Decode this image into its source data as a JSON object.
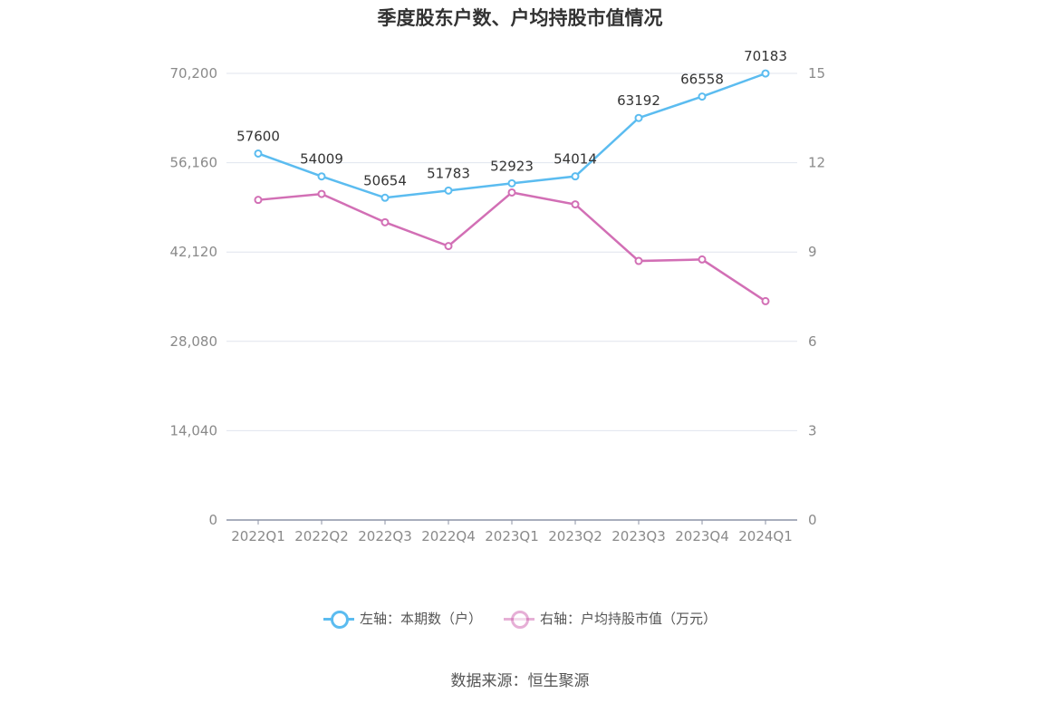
{
  "title": "季度股东户数、户均持股市值情况",
  "source": "数据来源：恒生聚源",
  "legend": [
    {
      "label": "左轴：本期数（户）",
      "color": "#5bbcf0"
    },
    {
      "label": "右轴：户均持股市值（万元）",
      "color": "#d26fb5"
    }
  ],
  "chart_data": {
    "type": "line",
    "categories": [
      "2022Q1",
      "2022Q2",
      "2022Q3",
      "2022Q4",
      "2023Q1",
      "2023Q2",
      "2023Q3",
      "2023Q4",
      "2024Q1"
    ],
    "y_left": {
      "ticks": [
        "0",
        "14,040",
        "28,080",
        "42,120",
        "56,160",
        "70,200"
      ],
      "ylim": [
        0,
        70200
      ]
    },
    "y_right": {
      "ticks": [
        "0",
        "3",
        "6",
        "9",
        "12",
        "15"
      ],
      "ylim": [
        0,
        15
      ]
    },
    "series": [
      {
        "name": "左轴：本期数（户）",
        "axis": "left",
        "color": "#5bbcf0",
        "values": [
          57600,
          54009,
          50654,
          51783,
          52923,
          54014,
          63192,
          66558,
          70183
        ],
        "labels": [
          "57600",
          "54009",
          "50654",
          "51783",
          "52923",
          "54014",
          "63192",
          "66558",
          "70183"
        ]
      },
      {
        "name": "右轴：户均持股市值（万元）",
        "axis": "right",
        "color": "#d26fb5",
        "values": [
          10.75,
          10.95,
          10.0,
          9.2,
          11.0,
          10.6,
          8.7,
          8.75,
          7.35
        ]
      }
    ],
    "grid": true,
    "legend_position": "bottom"
  }
}
